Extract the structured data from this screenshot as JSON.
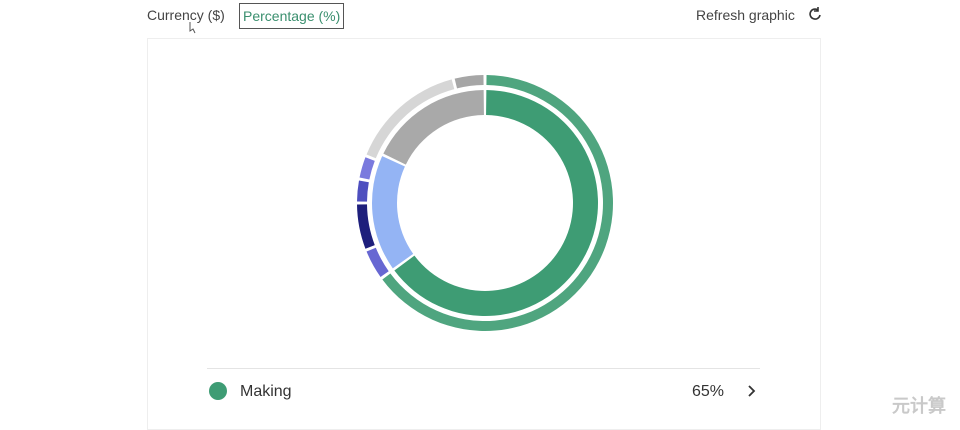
{
  "toolbar": {
    "currency": "Currency ($)",
    "percentage": "Percentage (%)",
    "refresh": "Refresh graphic"
  },
  "chart_data": {
    "type": "donut",
    "rings": [
      {
        "categories": [
          "Making",
          null,
          null
        ],
        "values": [
          65,
          17,
          18
        ],
        "value_labels": [
          "65%",
          null,
          null
        ],
        "colors": [
          "#3e9c74",
          "#94b4f4",
          "#a9a9a9"
        ]
      },
      {
        "categories": [
          null,
          null,
          null,
          null,
          null,
          null,
          null
        ],
        "values": [
          65,
          4,
          6,
          3,
          3,
          15,
          4
        ],
        "colors": [
          "#4fa57f",
          "#6767d2",
          "#1e1f7c",
          "#4e4fbf",
          "#7a7ade",
          "#d6d6d6",
          "#a6a6a6"
        ]
      }
    ]
  },
  "watermark": "元计算"
}
